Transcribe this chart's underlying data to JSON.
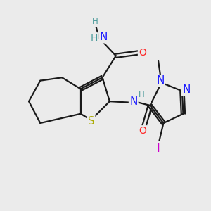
{
  "bg_color": "#ebebeb",
  "bond_color": "#1a1a1a",
  "bond_width": 1.6,
  "atom_colors": {
    "C": "#1a1a1a",
    "H": "#4a9a9a",
    "N": "#1a1aff",
    "O": "#ff2020",
    "S": "#aaaa00",
    "I": "#cc00cc"
  },
  "font_size_atoms": 10,
  "font_size_small": 8.5
}
